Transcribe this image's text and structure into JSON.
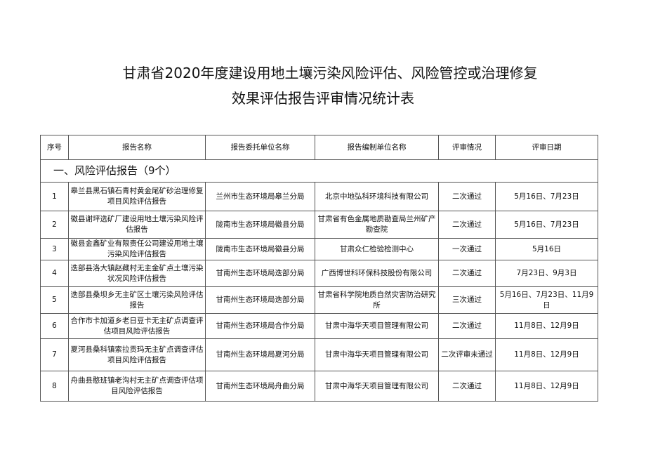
{
  "title_line1": "甘肃省2020年度建设用地土壤污染风险评估、风险管控或治理修复",
  "title_line2": "效果评估报告评审情况统计表",
  "headers": [
    "序号",
    "报告名称",
    "报告委托单位名称",
    "报告编制单位名称",
    "评审情况",
    "评审日期"
  ],
  "section": "一、风险评估报告（9个）",
  "rows": [
    [
      "1",
      "皋兰县黑石镇石青村黄金尾矿砂治理修复项目风险评估报告",
      "兰州市生态环境局皋兰分局",
      "北京中地弘科环境科技有限公司",
      "二次通过",
      "5月16日、7月23日"
    ],
    [
      "2",
      "徽县谢坪选矿厂建设用地土壤污染风险评估报告",
      "陇南市生态环境局徽县分局",
      "甘肃省有色金属地质勘查局兰州矿产勘查院",
      "二次通过",
      "5月16日、7月23日"
    ],
    [
      "3",
      "徽县金鑫矿业有限责任公司建设用地土壤污染风险评估报告",
      "陇南市生态环境局徽县分局",
      "甘肃众仁检验检测中心",
      "一次通过",
      "5月16日"
    ],
    [
      "4",
      "迭部县洛大镇赵藏村无主金矿点土壤污染状况风险评估报告",
      "甘南州生态环境局迭部分局",
      "广西博世科环保科技股份有限公司",
      "二次通过",
      "7月23日、9月3日"
    ],
    [
      "5",
      "迭部县桑坝乡无主矿区土壤污染风险评估报告",
      "甘南州生态环境局迭部分局",
      "甘肃省科学院地质自然灾害防治研究所",
      "三次通过",
      "5月16日、7月23日、11月9日"
    ],
    [
      "6",
      "合作市卡加道乡老日豆卡无主矿点调查评估项目风险评估报告",
      "甘南州生态环境局合作分局",
      "甘肃中海华天项目管理有限公司",
      "二次通过",
      "11月8日、12月9日"
    ],
    [
      "7",
      "夏河县桑科镇索拉贡玛无主矿点调查评估项目风险评估报告",
      "甘南州生态环境局夏河分局",
      "甘肃中海华天项目管理有限公司",
      "二次评审未通过",
      "11月8日、12月9日"
    ],
    [
      "8",
      "舟曲县憨班镇老沟村无主矿点调查评估项目风险评估报告",
      "甘南州生态环境局舟曲分局",
      "甘肃中海华天项目管理有限公司",
      "二次通过",
      "11月8日、12月9日"
    ]
  ]
}
